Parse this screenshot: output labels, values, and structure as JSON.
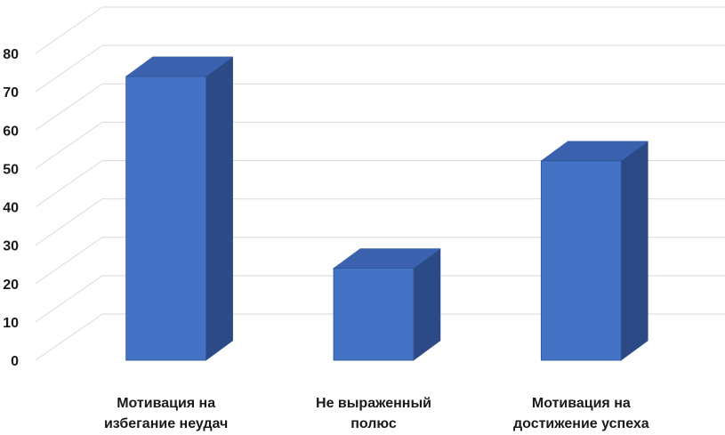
{
  "chart_data": {
    "type": "bar",
    "style": "3d-column",
    "categories": [
      [
        "Мотивация на",
        "избегание неудач"
      ],
      [
        "Не выраженный",
        "полюс"
      ],
      [
        "Мотивация на",
        "достижение успеха"
      ]
    ],
    "values": [
      74,
      24,
      52
    ],
    "ylim": [
      0,
      80
    ],
    "yticks": [
      0,
      10,
      20,
      30,
      40,
      50,
      60,
      70,
      80
    ],
    "grid": true,
    "legend": "none",
    "colors": {
      "front": "#4472C4",
      "side": "#2C4A85",
      "top": "#3A62AE",
      "edge": "#2F528F",
      "grid": "#D9D9D9"
    }
  }
}
